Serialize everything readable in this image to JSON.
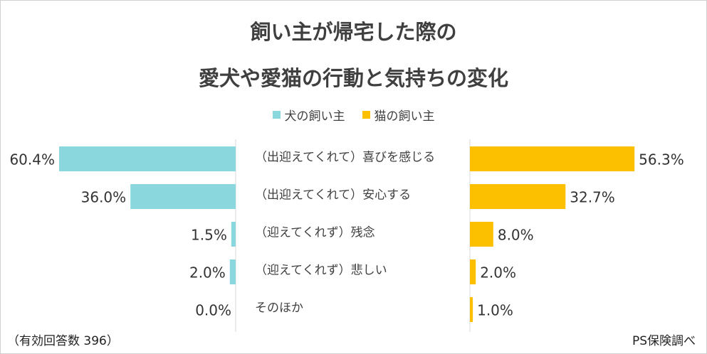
{
  "chart_data": {
    "type": "bar",
    "title_line1": "飼い主が帰宅した際の",
    "title_line2": "愛犬や愛猫の行動と気持ちの変化",
    "categories": [
      "（出迎えてくれて）喜びを感じる",
      "（出迎えてくれて）安心する",
      "（迎えてくれず）残念",
      "（迎えてくれず）悲しい",
      "そのほか"
    ],
    "series": [
      {
        "name": "犬の飼い主",
        "color": "#8ad8de",
        "values": [
          60.4,
          36.0,
          1.5,
          2.0,
          0.0
        ],
        "labels": [
          "60.4%",
          "36.0%",
          "1.5%",
          "2.0%",
          "0.0%"
        ]
      },
      {
        "name": "猫の飼い主",
        "color": "#fdc000",
        "values": [
          56.3,
          32.7,
          8.0,
          2.0,
          1.0
        ],
        "labels": [
          "56.3%",
          "32.7%",
          "8.0%",
          "2.0%",
          "1.0%"
        ]
      }
    ],
    "xlim": [
      0,
      100
    ],
    "legend_position": "top-center"
  },
  "footnote_left": "（有効回答数 396）",
  "footnote_right": "PS保険調べ"
}
